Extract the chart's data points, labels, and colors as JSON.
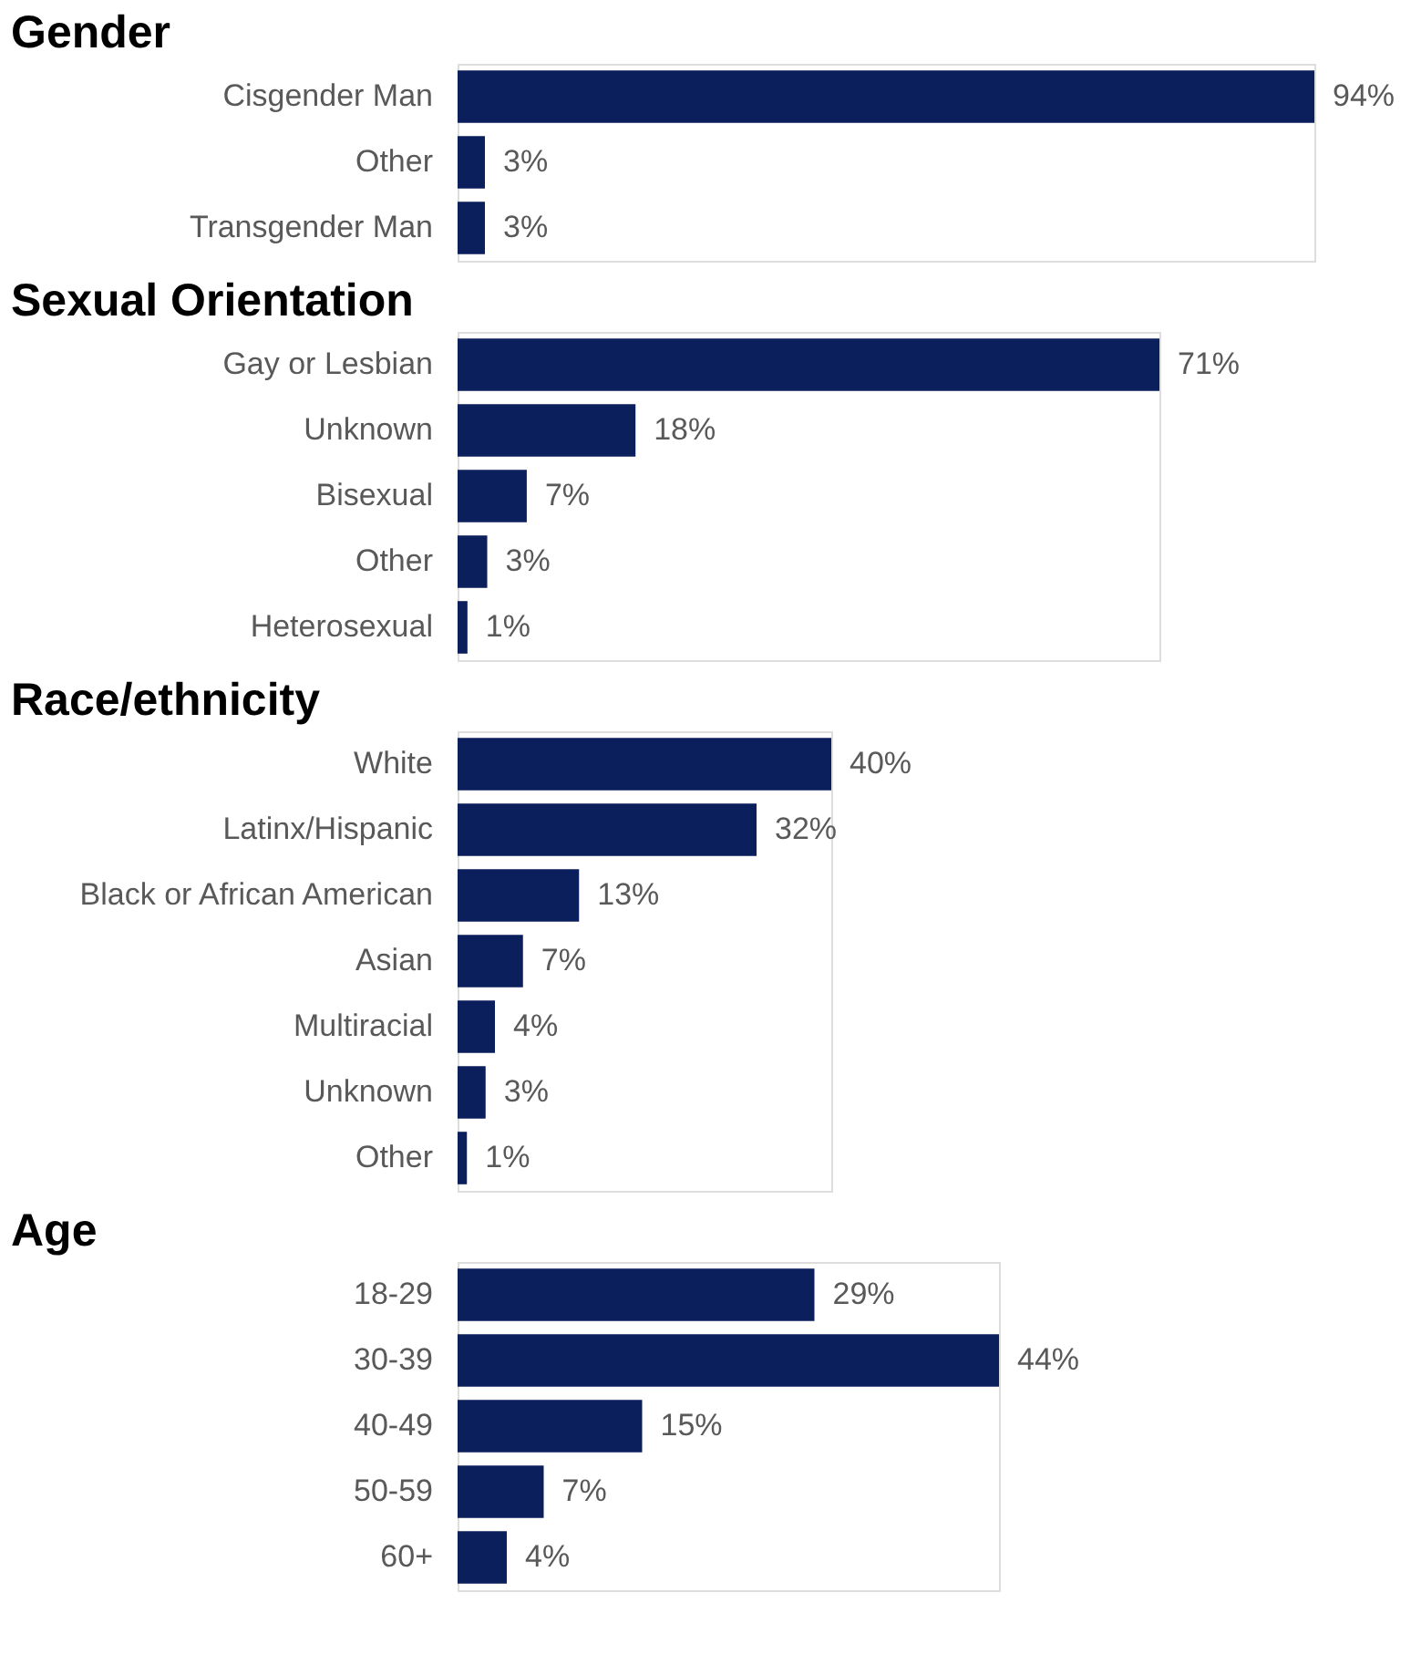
{
  "chart_data": [
    {
      "type": "bar",
      "orientation": "horizontal",
      "title": "Gender",
      "categories": [
        "Cisgender Man",
        "Other",
        "Transgender Man"
      ],
      "values": [
        94,
        3,
        3
      ],
      "value_labels": [
        "94%",
        "3%",
        "3%"
      ],
      "color": "#0b1f5c"
    },
    {
      "type": "bar",
      "orientation": "horizontal",
      "title": "Sexual Orientation",
      "categories": [
        "Gay or Lesbian",
        "Unknown",
        "Bisexual",
        "Other",
        "Heterosexual"
      ],
      "values": [
        71,
        18,
        7,
        3,
        1
      ],
      "value_labels": [
        "71%",
        "18%",
        "7%",
        "3%",
        "1%"
      ],
      "color": "#0b1f5c"
    },
    {
      "type": "bar",
      "orientation": "horizontal",
      "title": "Race/ethnicity",
      "categories": [
        "White",
        "Latinx/Hispanic",
        "Black or African American",
        "Asian",
        "Multiracial",
        "Unknown",
        "Other"
      ],
      "values": [
        40,
        32,
        13,
        7,
        4,
        3,
        1
      ],
      "value_labels": [
        "40%",
        "32%",
        "13%",
        "7%",
        "4%",
        "3%",
        "1%"
      ],
      "color": "#0b1f5c"
    },
    {
      "type": "bar",
      "orientation": "horizontal",
      "title": "Age",
      "categories": [
        "18-29",
        "30-39",
        "40-49",
        "50-59",
        "60+"
      ],
      "values": [
        29,
        44,
        15,
        7,
        4
      ],
      "value_labels": [
        "29%",
        "44%",
        "15%",
        "7%",
        "4%"
      ],
      "color": "#0b1f5c"
    }
  ]
}
